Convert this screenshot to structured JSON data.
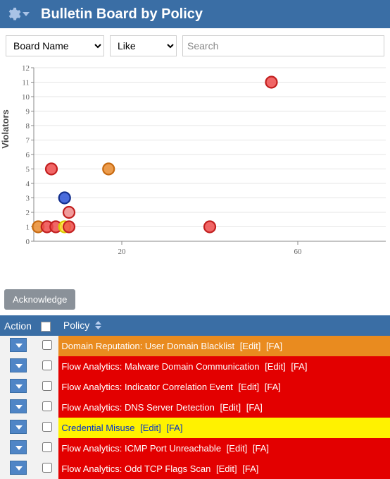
{
  "header": {
    "title": "Bulletin Board by Policy",
    "header_bg": "#3a6ea5"
  },
  "filter": {
    "field_select": "Board Name",
    "op_select": "Like",
    "search_placeholder": "Search"
  },
  "chart": {
    "type": "scatter",
    "ylabel": "Violators",
    "xlim": [
      0,
      80
    ],
    "ylim": [
      0,
      12
    ],
    "yticks": [
      0,
      1,
      2,
      3,
      4,
      5,
      6,
      7,
      8,
      9,
      10,
      11,
      12
    ],
    "xticks": [
      20,
      60
    ],
    "grid_color": "#e5e5e5",
    "axis_color": "#888888",
    "label_color": "#666666",
    "label_fontsize": 11,
    "ylabel_fontsize": 13,
    "background_color": "#ffffff",
    "marker_radius": 8,
    "marker_stroke_width": 2.2,
    "points": [
      {
        "x": 1,
        "y": 1,
        "fill": "#e98b2e",
        "stroke": "#c76a10"
      },
      {
        "x": 3,
        "y": 1,
        "fill": "#ef4b4b",
        "stroke": "#c21f1f"
      },
      {
        "x": 5,
        "y": 1,
        "fill": "#ef4b4b",
        "stroke": "#c21f1f"
      },
      {
        "x": 7,
        "y": 1,
        "fill": "#fff23a",
        "stroke": "#d9c900"
      },
      {
        "x": 8,
        "y": 1,
        "fill": "#ef4b4b",
        "stroke": "#c21f1f"
      },
      {
        "x": 8,
        "y": 2,
        "fill": "#ef8b8b",
        "stroke": "#c21f1f"
      },
      {
        "x": 7,
        "y": 3,
        "fill": "#2a52d6",
        "stroke": "#14308e"
      },
      {
        "x": 4,
        "y": 5,
        "fill": "#ef4b4b",
        "stroke": "#c21f1f"
      },
      {
        "x": 17,
        "y": 5,
        "fill": "#e98b2e",
        "stroke": "#c76a10"
      },
      {
        "x": 40,
        "y": 1,
        "fill": "#ef4b4b",
        "stroke": "#c21f1f"
      },
      {
        "x": 54,
        "y": 11,
        "fill": "#ef4b4b",
        "stroke": "#c21f1f"
      }
    ]
  },
  "ack_label": "Acknowledge",
  "table": {
    "columns": {
      "action": "Action",
      "policy": "Policy"
    },
    "edit_label": "[Edit]",
    "fa_label": "[FA]",
    "rows": [
      {
        "label": "Domain Reputation: User Domain Blacklist",
        "bg": "#e98b1f",
        "text": "#ffffff"
      },
      {
        "label": "Flow Analytics: Malware Domain Communication",
        "bg": "#e30000",
        "text": "#ffffff"
      },
      {
        "label": "Flow Analytics: Indicator Correlation Event",
        "bg": "#e30000",
        "text": "#ffffff"
      },
      {
        "label": "Flow Analytics: DNS Server Detection",
        "bg": "#e30000",
        "text": "#ffffff"
      },
      {
        "label": "Credential Misuse",
        "bg": "#fff200",
        "text": "#0033cc",
        "cred": true
      },
      {
        "label": "Flow Analytics: ICMP Port Unreachable",
        "bg": "#e30000",
        "text": "#ffffff"
      },
      {
        "label": "Flow Analytics: Odd TCP Flags Scan",
        "bg": "#e30000",
        "text": "#ffffff"
      }
    ]
  }
}
